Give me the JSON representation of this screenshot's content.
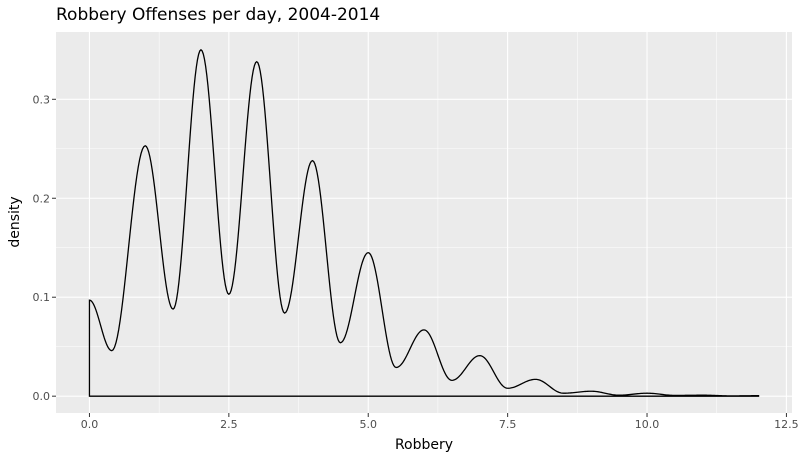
{
  "chart_data": {
    "type": "area",
    "title": "Robbery Offenses per day, 2004-2014",
    "xlabel": "Robbery",
    "ylabel": "density",
    "xlim": [
      -0.6,
      12.6
    ],
    "ylim": [
      -0.017,
      0.368
    ],
    "x_ticks": [
      0,
      2.5,
      5,
      7.5,
      10,
      12.5
    ],
    "x_tick_labels": [
      "0.0",
      "2.5",
      "5.0",
      "7.5",
      "10.0",
      "12.5"
    ],
    "y_ticks": [
      0,
      0.1,
      0.2,
      0.3
    ],
    "y_tick_labels": [
      "0.0",
      "0.1",
      "0.2",
      "0.3"
    ],
    "grid": true,
    "legend": "none",
    "colors": {
      "panel": "#ebebeb",
      "grid": "#ffffff",
      "line": "#000000",
      "tick_text": "#4d4d4d"
    },
    "density_model": {
      "description_of_shape": "multimodal kernel density with peaks near integer counts",
      "x_range": [
        0,
        12
      ],
      "peaks": [
        {
          "x": 0,
          "y": 0.097
        },
        {
          "x": 1,
          "y": 0.253
        },
        {
          "x": 2,
          "y": 0.35
        },
        {
          "x": 3,
          "y": 0.338
        },
        {
          "x": 4,
          "y": 0.238
        },
        {
          "x": 5,
          "y": 0.145
        },
        {
          "x": 6,
          "y": 0.067
        },
        {
          "x": 7,
          "y": 0.041
        },
        {
          "x": 8,
          "y": 0.017
        },
        {
          "x": 9,
          "y": 0.005
        },
        {
          "x": 10,
          "y": 0.003
        },
        {
          "x": 11,
          "y": 0.001
        },
        {
          "x": 12,
          "y": 0.0005
        }
      ],
      "valleys": [
        {
          "x": 0.4,
          "y": 0.046
        },
        {
          "x": 1.5,
          "y": 0.088
        },
        {
          "x": 2.5,
          "y": 0.103
        },
        {
          "x": 3.5,
          "y": 0.084
        },
        {
          "x": 4.5,
          "y": 0.054
        },
        {
          "x": 5.5,
          "y": 0.029
        },
        {
          "x": 6.5,
          "y": 0.016
        },
        {
          "x": 7.5,
          "y": 0.008
        },
        {
          "x": 8.5,
          "y": 0.003
        },
        {
          "x": 9.5,
          "y": 0.001
        },
        {
          "x": 10.5,
          "y": 0.0008
        },
        {
          "x": 11.5,
          "y": 0.0003
        }
      ]
    }
  }
}
